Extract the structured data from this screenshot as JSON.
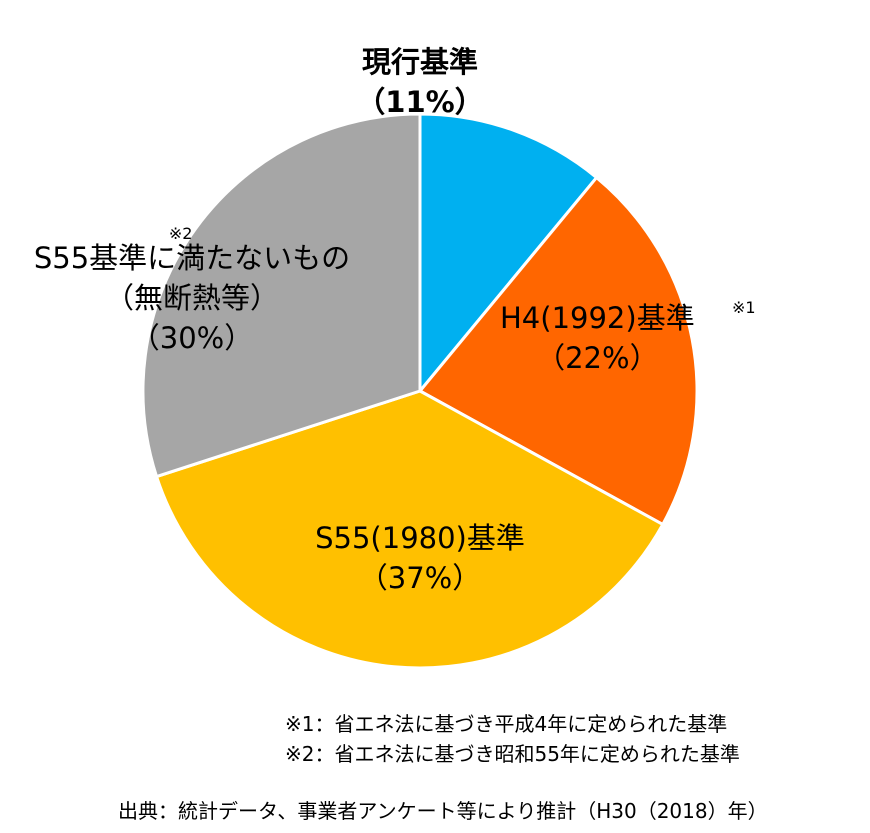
{
  "chart_data": {
    "type": "pie",
    "start": "top",
    "direction": "clockwise",
    "slices": [
      {
        "label": "現行基準",
        "value": 11,
        "value_label": "（11%）",
        "color": "#00B0F0"
      },
      {
        "label": "H4(1992)基準",
        "value": 22,
        "value_label": "（22%）",
        "color": "#FF6600",
        "note_mark": "※1"
      },
      {
        "label": "S55(1980)基準",
        "value": 37,
        "value_label": "（37%）",
        "color": "#FFC000"
      },
      {
        "label": "S55基準に満たないもの",
        "sublabel": "（無断熱等）",
        "value": 30,
        "value_label": "（30%）",
        "color": "#A6A6A6",
        "note_mark": "※2"
      }
    ]
  },
  "notes": {
    "note1": "※1：省エネ法に基づき平成4年に定められた基準",
    "note2": "※2：省エネ法に基づき昭和55年に定められた基準",
    "source": "出典：統計データ、事業者アンケート等により推計（H30（2018）年）"
  }
}
